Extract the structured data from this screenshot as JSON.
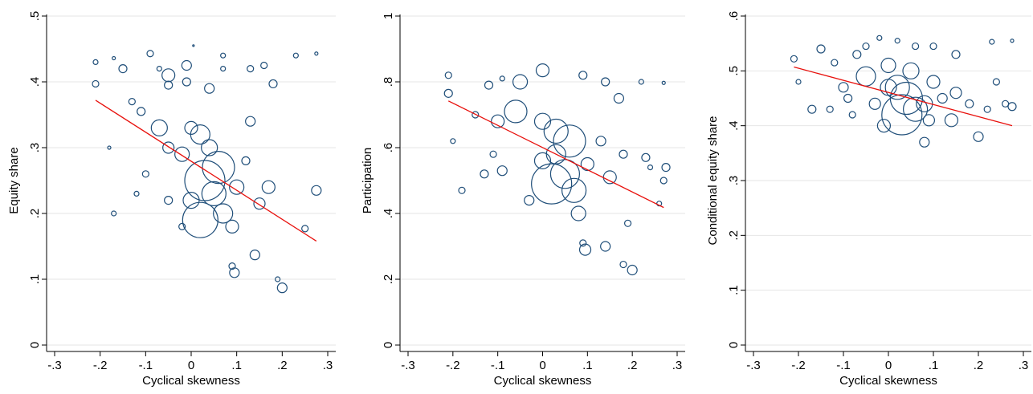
{
  "chart_data": [
    {
      "type": "scatter",
      "xlabel": "Cyclical skewness",
      "ylabel": "Equity share",
      "color": "#1f4e79",
      "grid": true,
      "xlim": [
        -0.3,
        0.3
      ],
      "ylim": [
        0,
        0.5
      ],
      "xticks": [
        {
          "value": -0.3,
          "label": "-.3"
        },
        {
          "value": -0.2,
          "label": "-.2"
        },
        {
          "value": -0.1,
          "label": "-.1"
        },
        0,
        {
          "value": 0.1,
          "label": ".1"
        },
        {
          "value": 0.2,
          "label": ".2"
        },
        {
          "value": 0.3,
          "label": ".3"
        }
      ],
      "yticks": [
        0,
        {
          "value": 0.1,
          "label": ".1"
        },
        {
          "value": 0.2,
          "label": ".2"
        },
        {
          "value": 0.3,
          "label": ".3"
        },
        {
          "value": 0.4,
          "label": ".4"
        },
        {
          "value": 0.5,
          "label": ".5"
        }
      ],
      "x": [
        -0.21,
        -0.21,
        -0.17,
        -0.15,
        -0.09,
        -0.07,
        -0.05,
        -0.05,
        -0.01,
        -0.01,
        0.04,
        0.07,
        0.13,
        0.16,
        0.23,
        0.275,
        -0.18,
        -0.13,
        -0.11,
        -0.07,
        -0.05,
        -0.02,
        0.0,
        0.02,
        0.04,
        0.06,
        0.03,
        0.05,
        0.0,
        0.02,
        0.07,
        0.09,
        0.1,
        0.12,
        0.13,
        0.17,
        0.15,
        -0.17,
        -0.12,
        -0.1,
        -0.05,
        -0.02,
        0.09,
        0.095,
        0.14,
        0.19,
        0.2,
        0.25,
        0.275,
        0.18,
        0.07,
        0.005
      ],
      "values": [
        0.43,
        0.397,
        0.436,
        0.42,
        0.443,
        0.42,
        0.41,
        0.395,
        0.425,
        0.4,
        0.39,
        0.42,
        0.42,
        0.425,
        0.44,
        0.443,
        0.3,
        0.37,
        0.355,
        0.33,
        0.3,
        0.29,
        0.33,
        0.32,
        0.3,
        0.27,
        0.25,
        0.23,
        0.22,
        0.19,
        0.2,
        0.18,
        0.24,
        0.28,
        0.34,
        0.24,
        0.215,
        0.2,
        0.23,
        0.26,
        0.22,
        0.18,
        0.12,
        0.11,
        0.137,
        0.1,
        0.087,
        0.177,
        0.235,
        0.397,
        0.44,
        0.455
      ],
      "sizes": [
        3,
        4,
        2,
        5,
        4,
        3,
        8,
        5,
        6,
        5,
        6,
        3,
        4,
        4,
        3,
        2,
        2,
        4,
        5,
        10,
        7,
        9,
        8,
        12,
        10,
        20,
        25,
        15,
        10,
        22,
        12,
        8,
        9,
        5,
        6,
        8,
        7,
        3,
        3,
        4,
        5,
        4,
        4,
        6,
        6,
        3,
        6,
        4,
        6,
        5,
        3,
        1
      ],
      "fit": {
        "x": [
          -0.21,
          0.275
        ],
        "values": [
          0.372,
          0.158
        ],
        "color": "#e8100c"
      }
    },
    {
      "type": "scatter",
      "xlabel": "Cyclical skewness",
      "ylabel": "Participation",
      "color": "#1f4e79",
      "grid": true,
      "xlim": [
        -0.3,
        0.3
      ],
      "ylim": [
        0,
        1
      ],
      "xticks": [
        {
          "value": -0.3,
          "label": "-.3"
        },
        {
          "value": -0.2,
          "label": "-.2"
        },
        {
          "value": -0.1,
          "label": "-.1"
        },
        0,
        {
          "value": 0.1,
          "label": ".1"
        },
        {
          "value": 0.2,
          "label": ".2"
        },
        {
          "value": 0.3,
          "label": ".3"
        }
      ],
      "yticks": [
        0,
        {
          "value": 0.2,
          "label": ".2"
        },
        {
          "value": 0.4,
          "label": ".4"
        },
        {
          "value": 0.6,
          "label": ".6"
        },
        {
          "value": 0.8,
          "label": ".8"
        },
        1
      ],
      "x": [
        -0.21,
        -0.21,
        -0.12,
        -0.09,
        0.0,
        0.09,
        0.14,
        0.22,
        0.27,
        -0.05,
        -0.06,
        -0.1,
        0.0,
        0.03,
        0.06,
        0.03,
        0.0,
        0.05,
        0.02,
        0.07,
        0.08,
        0.1,
        0.13,
        0.15,
        0.18,
        0.17,
        -0.15,
        -0.2,
        -0.18,
        -0.13,
        -0.09,
        -0.11,
        -0.03,
        0.09,
        0.095,
        0.14,
        0.19,
        0.18,
        0.2,
        0.26,
        0.275,
        0.27,
        0.23,
        0.24
      ],
      "values": [
        0.82,
        0.765,
        0.79,
        0.81,
        0.835,
        0.82,
        0.8,
        0.8,
        0.797,
        0.8,
        0.71,
        0.68,
        0.68,
        0.65,
        0.62,
        0.58,
        0.56,
        0.52,
        0.49,
        0.47,
        0.4,
        0.55,
        0.62,
        0.51,
        0.58,
        0.75,
        0.7,
        0.62,
        0.47,
        0.52,
        0.53,
        0.58,
        0.44,
        0.31,
        0.29,
        0.3,
        0.37,
        0.245,
        0.228,
        0.43,
        0.54,
        0.5,
        0.57,
        0.54
      ],
      "sizes": [
        4,
        5,
        5,
        3,
        8,
        5,
        5,
        3,
        2,
        9,
        14,
        8,
        10,
        15,
        20,
        12,
        10,
        18,
        25,
        15,
        9,
        8,
        6,
        8,
        5,
        6,
        4,
        3,
        4,
        5,
        6,
        4,
        6,
        4,
        7,
        6,
        4,
        4,
        6,
        3,
        5,
        4,
        5,
        3
      ],
      "fit": {
        "x": [
          -0.21,
          0.27
        ],
        "values": [
          0.742,
          0.418
        ],
        "color": "#e8100c"
      }
    },
    {
      "type": "scatter",
      "xlabel": "Cyclical skewness",
      "ylabel": "Conditional equity share",
      "color": "#1f4e79",
      "grid": true,
      "xlim": [
        -0.3,
        0.3
      ],
      "ylim": [
        0,
        0.6
      ],
      "xticks": [
        {
          "value": -0.3,
          "label": "-.3"
        },
        {
          "value": -0.2,
          "label": "-.2"
        },
        {
          "value": -0.1,
          "label": "-.1"
        },
        0,
        {
          "value": 0.1,
          "label": ".1"
        },
        {
          "value": 0.2,
          "label": ".2"
        },
        {
          "value": 0.3,
          "label": ".3"
        }
      ],
      "yticks": [
        0,
        {
          "value": 0.1,
          "label": ".1"
        },
        {
          "value": 0.2,
          "label": ".2"
        },
        {
          "value": 0.3,
          "label": ".3"
        },
        {
          "value": 0.4,
          "label": ".4"
        },
        {
          "value": 0.5,
          "label": ".5"
        },
        {
          "value": 0.6,
          "label": ".6"
        }
      ],
      "x": [
        -0.21,
        -0.15,
        -0.12,
        -0.07,
        -0.05,
        -0.02,
        0.02,
        0.06,
        0.1,
        0.15,
        0.23,
        0.275,
        -0.17,
        -0.13,
        -0.1,
        -0.05,
        -0.03,
        0.0,
        0.02,
        0.04,
        0.03,
        0.06,
        0.08,
        0.1,
        0.09,
        0.12,
        0.14,
        0.15,
        0.18,
        0.2,
        0.22,
        0.24,
        0.26,
        0.275,
        0.08,
        -0.01,
        -0.08,
        -0.2,
        -0.09,
        0.05,
        0.0
      ],
      "values": [
        0.522,
        0.54,
        0.515,
        0.53,
        0.545,
        0.56,
        0.555,
        0.545,
        0.545,
        0.53,
        0.553,
        0.555,
        0.43,
        0.43,
        0.47,
        0.49,
        0.44,
        0.51,
        0.47,
        0.45,
        0.42,
        0.43,
        0.44,
        0.48,
        0.41,
        0.45,
        0.41,
        0.46,
        0.44,
        0.38,
        0.43,
        0.48,
        0.44,
        0.435,
        0.37,
        0.4,
        0.42,
        0.48,
        0.45,
        0.5,
        0.47
      ],
      "sizes": [
        4,
        5,
        4,
        5,
        4,
        3,
        3,
        4,
        4,
        5,
        3,
        2,
        5,
        4,
        6,
        12,
        7,
        9,
        15,
        20,
        25,
        15,
        10,
        8,
        7,
        6,
        8,
        7,
        5,
        6,
        4,
        4,
        4,
        5,
        6,
        8,
        4,
        3,
        5,
        10,
        10
      ],
      "fit": {
        "x": [
          -0.21,
          0.275
        ],
        "values": [
          0.507,
          0.4
        ],
        "color": "#e8100c"
      }
    }
  ]
}
